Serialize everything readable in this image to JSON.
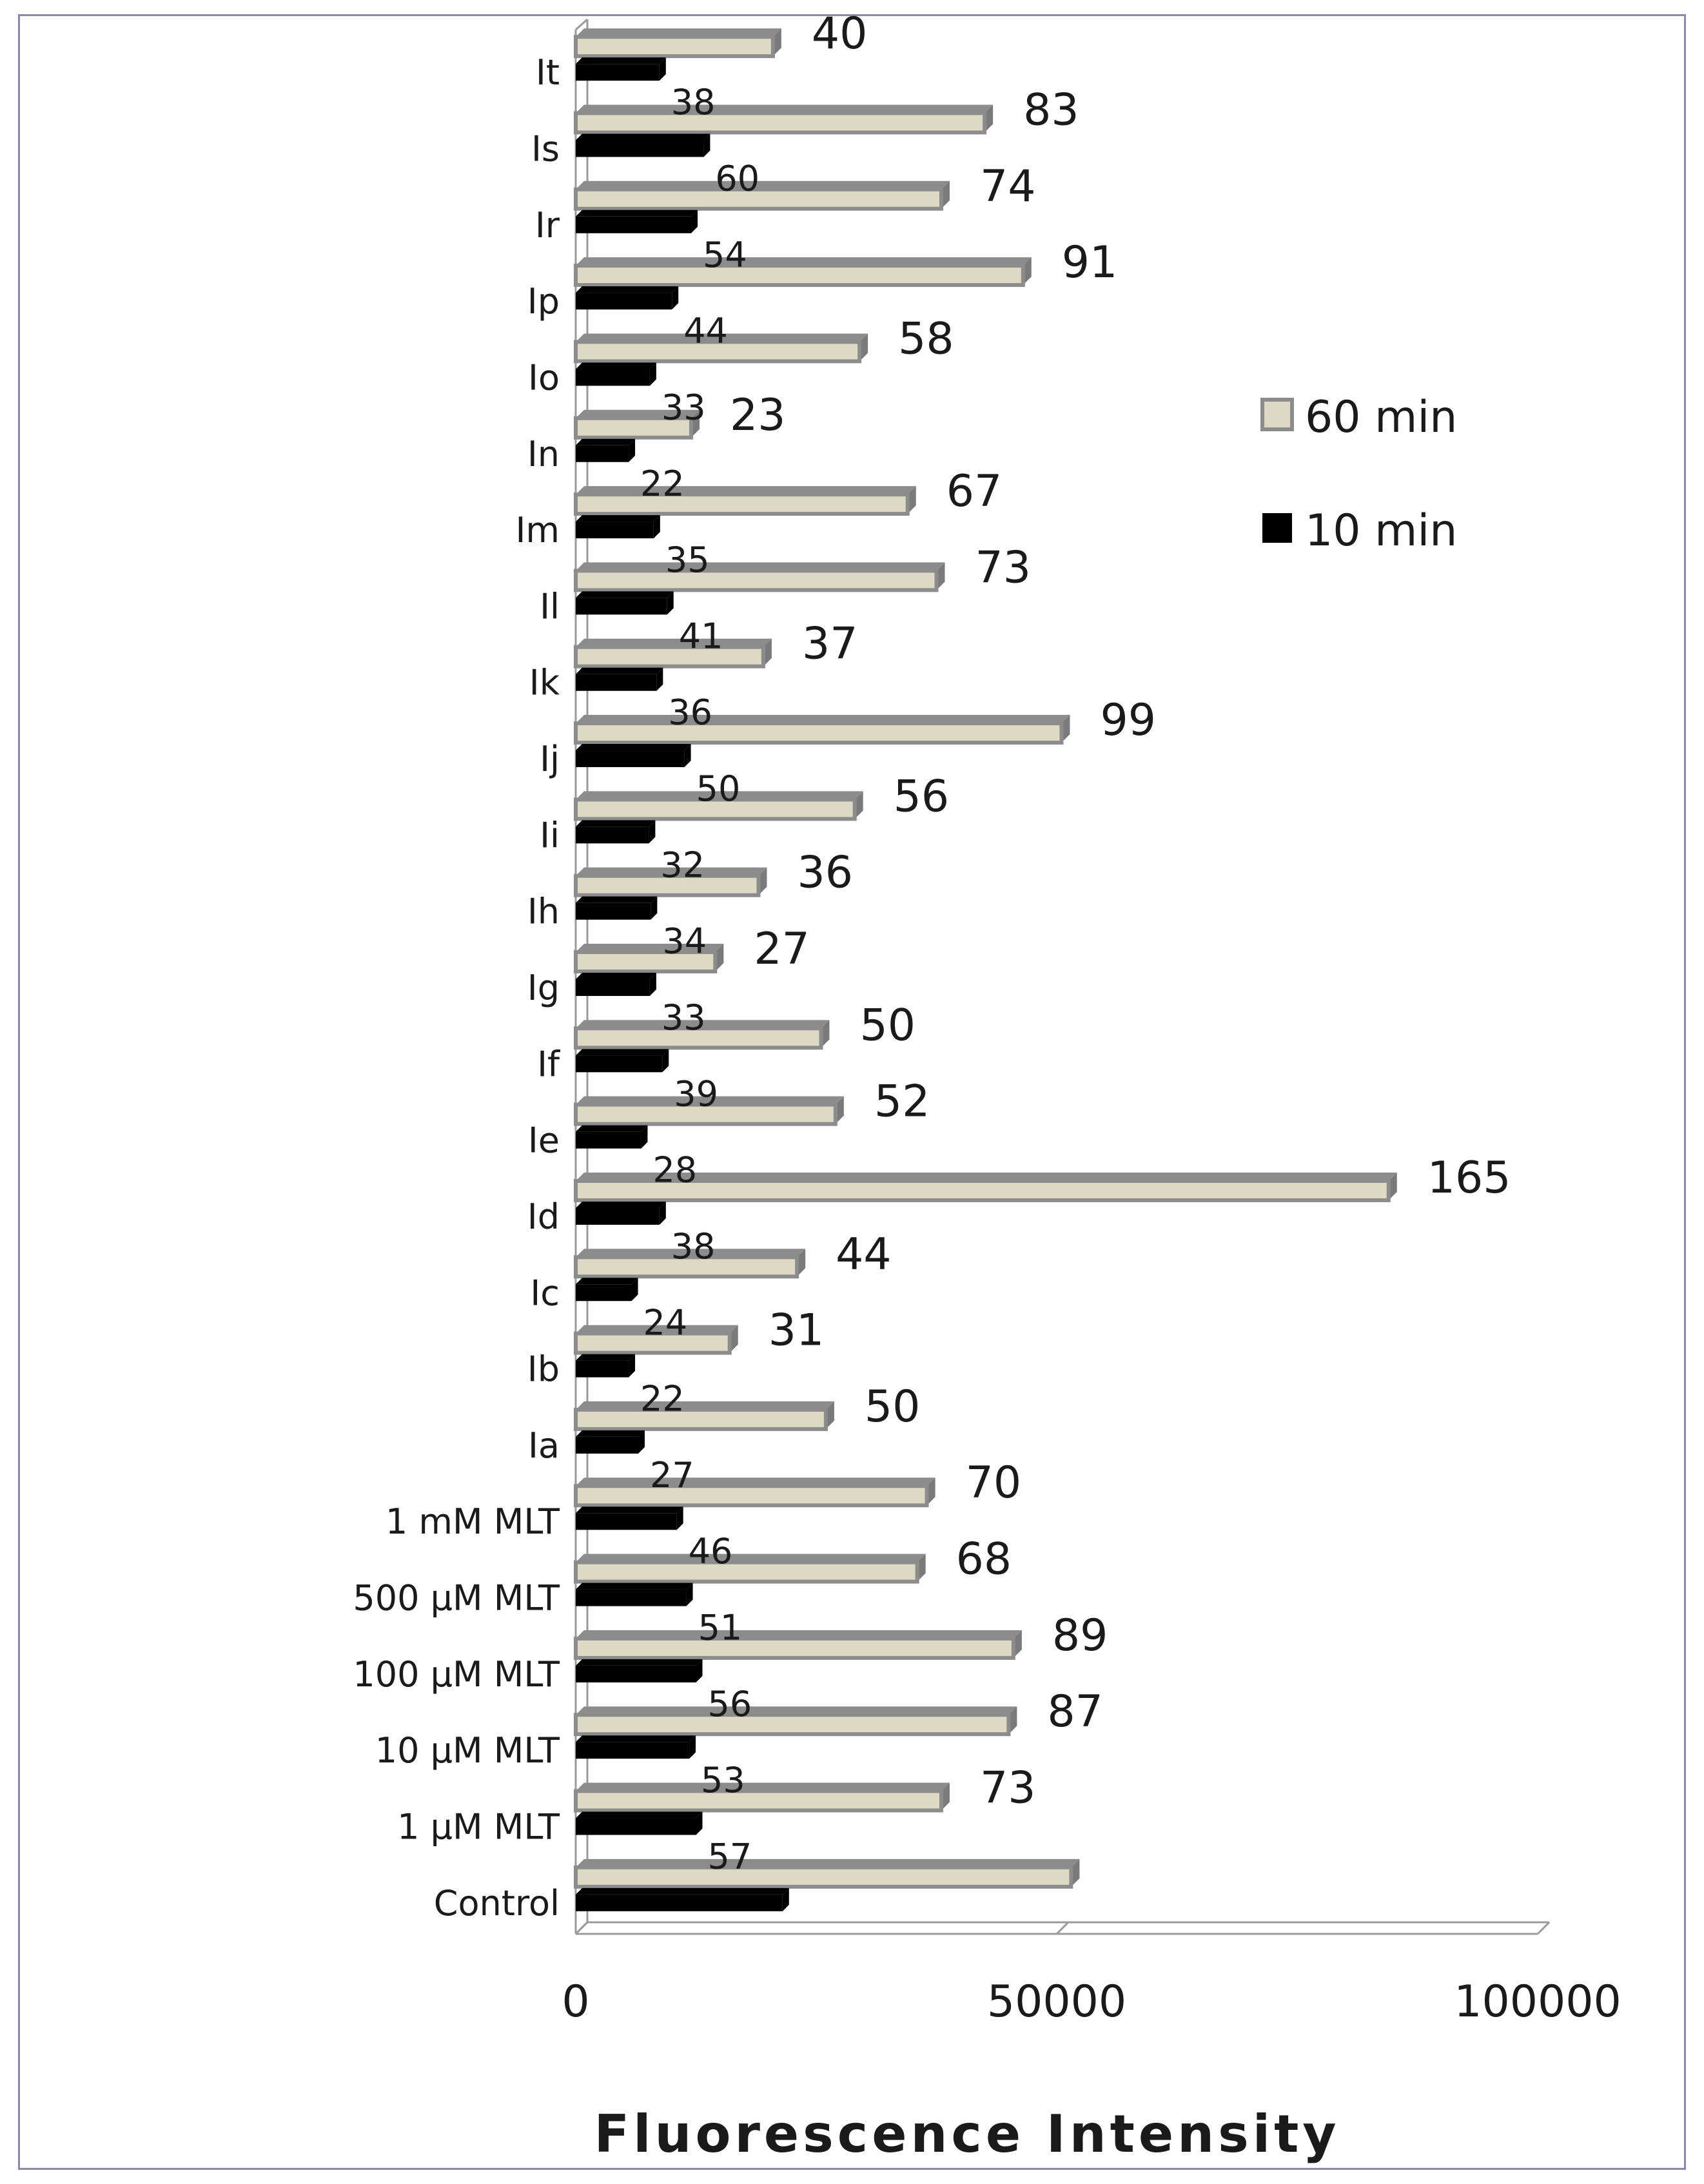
{
  "chart_data": {
    "type": "bar",
    "orientation": "horizontal",
    "style": "3d",
    "xlabel": "Fluorescence Intensity",
    "xlim": [
      0,
      100000
    ],
    "xticks": [
      0,
      50000,
      100000
    ],
    "xtick_labels": [
      "0",
      "50000",
      "100000"
    ],
    "legend_position": "right",
    "categories": [
      "Control",
      "1 μM MLT",
      "10 μM MLT",
      "100 μM MLT",
      "500 μM MLT",
      "1 mM MLT",
      "Ia",
      "Ib",
      "Ic",
      "Id",
      "Ie",
      "If",
      "Ig",
      "Ih",
      "Ii",
      "Ij",
      "Ik",
      "Il",
      "Im",
      "In",
      "Io",
      "Ip",
      "Ir",
      "Is",
      "It"
    ],
    "series": [
      {
        "name": "60 min",
        "color": "#ddd9c4",
        "values": [
          51500,
          38000,
          45000,
          45500,
          35500,
          36500,
          26000,
          16000,
          23000,
          84500,
          27000,
          25500,
          14500,
          19000,
          29000,
          50500,
          19500,
          37500,
          34500,
          12000,
          29500,
          46500,
          38000,
          42500,
          20500
        ],
        "labels": [
          "",
          "73",
          "87",
          "89",
          "68",
          "70",
          "50",
          "31",
          "44",
          "165",
          "52",
          "50",
          "27",
          "36",
          "56",
          "99",
          "37",
          "73",
          "67",
          "23",
          "58",
          "91",
          "74",
          "83",
          "40"
        ]
      },
      {
        "name": "10 min",
        "color": "#000000",
        "values": [
          21500,
          12500,
          11800,
          12500,
          11500,
          10500,
          6500,
          5500,
          5800,
          8700,
          6800,
          9000,
          7700,
          7800,
          7600,
          11300,
          8400,
          9500,
          8100,
          5500,
          7700,
          10000,
          12000,
          13300,
          8700
        ],
        "labels": [
          "",
          "57",
          "53",
          "56",
          "51",
          "46",
          "27",
          "22",
          "24",
          "38",
          "28",
          "39",
          "33",
          "34",
          "32",
          "50",
          "36",
          "41",
          "35",
          "22",
          "33",
          "44",
          "54",
          "60",
          "38"
        ]
      }
    ]
  }
}
